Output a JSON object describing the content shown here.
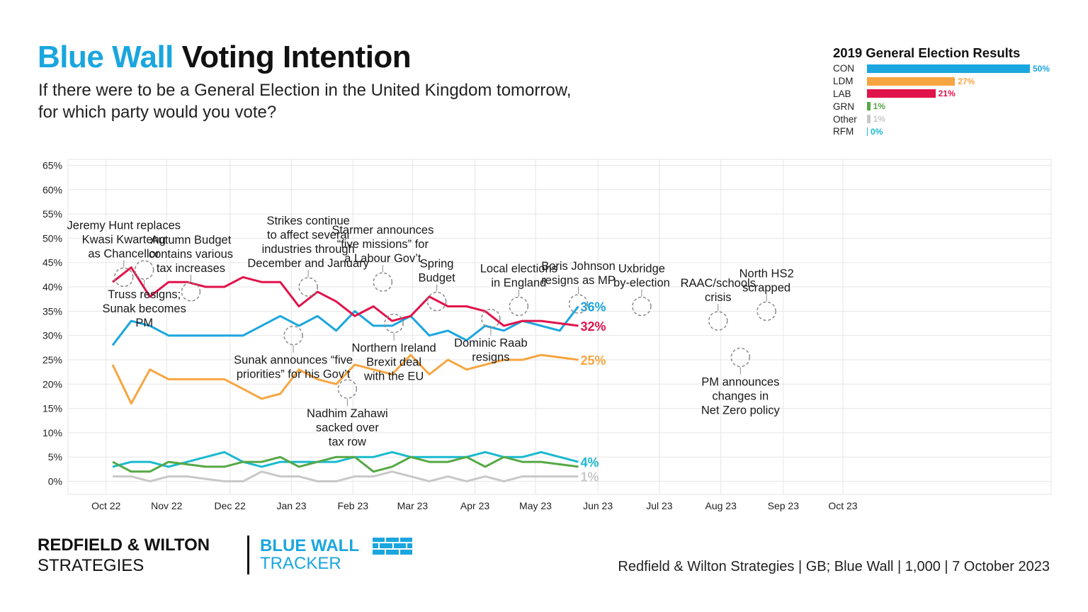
{
  "header": {
    "title_part1": "Blue Wall",
    "title_part2": "Voting Intention",
    "subtitle_line1": "If there were to be a General Election in the United Kingdom tomorrow,",
    "subtitle_line2": "for which party would you vote?"
  },
  "election_2019": {
    "title": "2019 General Election Results",
    "rows": [
      {
        "party": "CON",
        "value": 50,
        "label": "50%",
        "color": "#1aa6de"
      },
      {
        "party": "LDM",
        "value": 27,
        "label": "27%",
        "color": "#f7a541"
      },
      {
        "party": "LAB",
        "value": 21,
        "label": "21%",
        "color": "#e0134a"
      },
      {
        "party": "GRN",
        "value": 1,
        "label": "1%",
        "color": "#55a845"
      },
      {
        "party": "Other",
        "value": 1,
        "label": "1%",
        "color": "#c8c8c8"
      },
      {
        "party": "RFM",
        "value": 0,
        "label": "0%",
        "color": "#19b9cf"
      }
    ]
  },
  "chart_data": {
    "type": "line",
    "ylim": [
      0,
      65
    ],
    "y_ticks": [
      "0%",
      "5%",
      "10%",
      "15%",
      "20%",
      "25%",
      "30%",
      "35%",
      "40%",
      "45%",
      "50%",
      "55%",
      "60%",
      "65%"
    ],
    "x_tick_labels": [
      "Oct 22",
      "Nov 22",
      "Dec 22",
      "Jan 23",
      "Feb 23",
      "Mar 23",
      "Apr 23",
      "May 23",
      "Jun 23",
      "Jul 23",
      "Aug 23",
      "Sep 23",
      "Oct 23"
    ],
    "x_tick_index": [
      -0.35,
      2.9,
      6.3,
      9.6,
      12.9,
      16.1,
      19.45,
      22.7,
      26.05,
      29.35,
      32.65,
      36.0,
      39.2
    ],
    "grid": true,
    "series": [
      {
        "party": "CON",
        "color": "#1aa6de",
        "end_label": "36%",
        "values": [
          28,
          33,
          32,
          30,
          30,
          30,
          30,
          30,
          32,
          34,
          32,
          34,
          31,
          35,
          32,
          32,
          34,
          30,
          31,
          29,
          32,
          31,
          33,
          32,
          31,
          36
        ]
      },
      {
        "party": "LAB",
        "color": "#e0134a",
        "end_label": "32%",
        "values": [
          41,
          44,
          38,
          41,
          41,
          40,
          40,
          42,
          41,
          41,
          36,
          39,
          37,
          34,
          36,
          33,
          34,
          38,
          36,
          36,
          35,
          32,
          33,
          33,
          32.5,
          32
        ]
      },
      {
        "party": "LDM",
        "color": "#f7a541",
        "end_label": "25%",
        "values": [
          24,
          16,
          23,
          21,
          21,
          21,
          21,
          19,
          17,
          18,
          23,
          21,
          20,
          24,
          23,
          22,
          26,
          22,
          25,
          23,
          24,
          25,
          25,
          26,
          25.5,
          25
        ]
      },
      {
        "party": "RFM",
        "color": "#19b9cf",
        "end_label": "4%",
        "values": [
          3,
          4,
          4,
          3,
          4,
          5,
          6,
          4,
          3,
          4,
          4,
          4,
          4,
          5,
          5,
          6,
          5,
          5,
          5,
          5,
          6,
          5,
          5,
          6,
          5,
          4
        ]
      },
      {
        "party": "GRN",
        "color": "#55a845",
        "end_label": "",
        "values": [
          4,
          2,
          2,
          4,
          3.5,
          3,
          3,
          4,
          4,
          5,
          3,
          4,
          5,
          5,
          2,
          3,
          5,
          4,
          4,
          5,
          3,
          5,
          4,
          4,
          3.5,
          3
        ]
      },
      {
        "party": "Other",
        "color": "#c8c8c8",
        "end_label": "1%",
        "values": [
          1,
          1,
          0,
          1,
          1,
          0.5,
          0,
          0,
          2,
          1,
          1,
          0,
          0,
          1,
          1,
          2,
          1,
          0,
          1,
          0,
          1,
          0,
          1,
          1,
          1,
          1
        ]
      }
    ],
    "annotations": [
      {
        "lines": [
          "Jeremy Hunt replaces",
          "Kwasi Kwarteng",
          "as Chancellor"
        ],
        "anchor_index": 0.6,
        "anchor_value": 42,
        "side": "above"
      },
      {
        "lines": [
          "Truss resigns;",
          "Sunak becomes",
          "PM"
        ],
        "anchor_index": 1.7,
        "anchor_value": 43.5,
        "side": "below"
      },
      {
        "lines": [
          "Autumn Budget",
          "contains various",
          "tax increases"
        ],
        "anchor_index": 4.2,
        "anchor_value": 39,
        "side": "above"
      },
      {
        "lines": [
          "Strikes continue",
          "to affect several",
          "industries through",
          "December and January"
        ],
        "anchor_index": 10.5,
        "anchor_value": 40,
        "side": "above"
      },
      {
        "lines": [
          "Sunak announces “five",
          "priorities” for his Gov’t"
        ],
        "anchor_index": 9.7,
        "anchor_value": 30,
        "side": "below"
      },
      {
        "lines": [
          "Starmer announces",
          "“five missions” for",
          "a Labour Gov’t"
        ],
        "anchor_index": 14.5,
        "anchor_value": 41,
        "side": "above"
      },
      {
        "lines": [
          "Nadhim Zahawi",
          "sacked over",
          "tax row"
        ],
        "anchor_index": 12.6,
        "anchor_value": 19,
        "side": "below"
      },
      {
        "lines": [
          "Northern Ireland",
          "Brexit deal",
          "with the EU"
        ],
        "anchor_index": 15.1,
        "anchor_value": 32.5,
        "side": "below"
      },
      {
        "lines": [
          "Spring",
          "Budget"
        ],
        "anchor_index": 17.4,
        "anchor_value": 37,
        "side": "above"
      },
      {
        "lines": [
          "Dominic Raab",
          "resigns"
        ],
        "anchor_index": 20.3,
        "anchor_value": 33.5,
        "side": "below"
      },
      {
        "lines": [
          "Local elections",
          "in England"
        ],
        "anchor_index": 21.8,
        "anchor_value": 36,
        "side": "above"
      },
      {
        "lines": [
          "Boris Johnson",
          "resigns as MP"
        ],
        "anchor_index": 25.0,
        "anchor_value": 36.5,
        "side": "above"
      },
      {
        "lines": [
          "Uxbridge",
          "by-election"
        ],
        "anchor_index": 28.4,
        "anchor_value": 36,
        "side": "above"
      },
      {
        "lines": [
          "RAAC/schools",
          "crisis"
        ],
        "anchor_index": 32.5,
        "anchor_value": 33,
        "side": "above"
      },
      {
        "lines": [
          "North HS2",
          "scrapped"
        ],
        "anchor_index": 35.1,
        "anchor_value": 35,
        "side": "above"
      },
      {
        "lines": [
          "PM announces",
          "changes in",
          "Net Zero policy"
        ],
        "anchor_index": 33.7,
        "anchor_value": 25.5,
        "side": "below"
      }
    ]
  },
  "footer": {
    "brand_line1": "REDFIELD & WILTON",
    "brand_line2": "STRATEGIES",
    "tracker_line1": "BLUE WALL",
    "tracker_line2": "TRACKER",
    "source": "Redfield & Wilton Strategies | GB; Blue Wall | 1,000 | 7 October 2023"
  }
}
